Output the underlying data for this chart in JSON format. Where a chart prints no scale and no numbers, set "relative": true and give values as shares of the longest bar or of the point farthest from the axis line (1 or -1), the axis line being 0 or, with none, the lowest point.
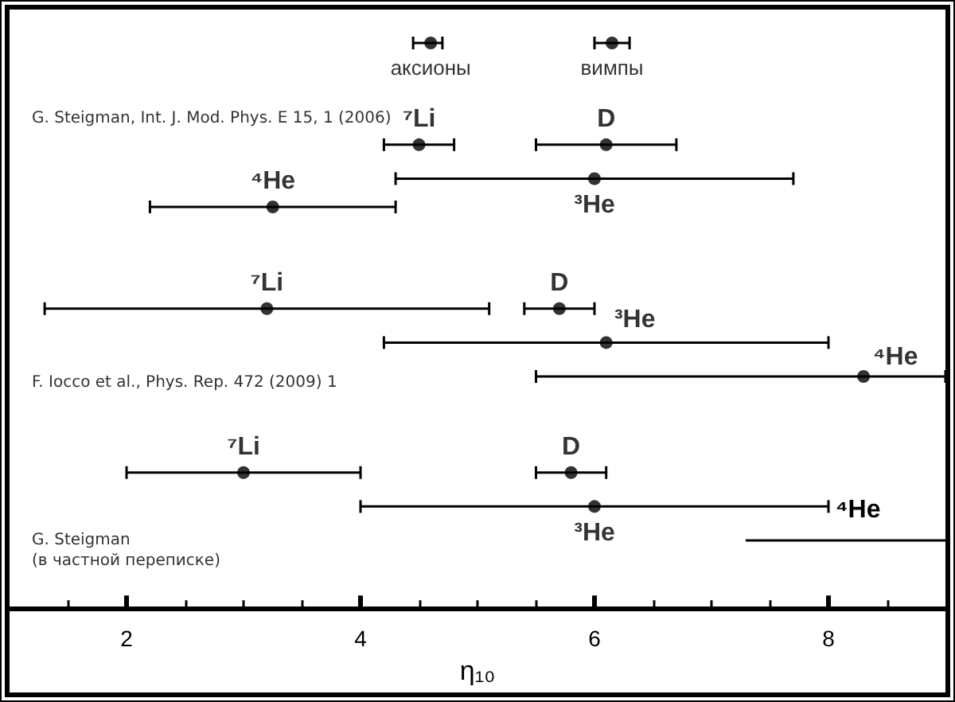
{
  "chart_data": {
    "type": "scatter",
    "relative": true,
    "marker": "circle",
    "xlabel": "η₁₀",
    "xlim": [
      1,
      9
    ],
    "xticks": [
      {
        "value": 1.5,
        "label": null
      },
      2,
      {
        "value": 2.5,
        "label": null
      },
      {
        "value": 3,
        "label": null
      },
      {
        "value": 3.5,
        "label": null
      },
      4,
      {
        "value": 4.5,
        "label": null
      },
      {
        "value": 5,
        "label": null
      },
      {
        "value": 5.5,
        "label": null
      },
      6,
      {
        "value": 6.5,
        "label": null
      },
      {
        "value": 7,
        "label": null
      },
      {
        "value": 7.5,
        "label": null
      },
      8,
      {
        "value": 8.5,
        "label": null
      }
    ],
    "series": [
      {
        "name": "аксионы",
        "color": "#000000",
        "x": [
          4.6
        ],
        "values": [
          1
        ],
        "xerrors": [
          [
            4.45,
            4.7
          ]
        ]
      },
      {
        "name": "вимпы",
        "color": "#000000",
        "x": [
          6.15
        ],
        "values": [
          1
        ],
        "xerrors": [
          [
            6.0,
            6.3
          ]
        ]
      },
      {
        "name": "⁷Li",
        "color": "#000000",
        "x": [
          4.5,
          3.2,
          3.0
        ],
        "values": [
          0.82,
          0.53,
          0.24
        ],
        "xerrors": [
          [
            4.2,
            4.8
          ],
          [
            1.3,
            5.1
          ],
          [
            2.0,
            4.0
          ]
        ]
      },
      {
        "name": "D",
        "color": "#000000",
        "x": [
          6.1,
          5.7,
          5.8
        ],
        "values": [
          0.82,
          0.53,
          0.24
        ],
        "xerrors": [
          [
            5.5,
            6.7
          ],
          [
            5.4,
            6.0
          ],
          [
            5.5,
            6.1
          ]
        ]
      },
      {
        "name": "³He",
        "color": "#000000",
        "x": [
          6.0,
          6.1,
          6.0
        ],
        "values": [
          0.76,
          0.47,
          0.18
        ],
        "xerrors": [
          [
            4.3,
            7.7
          ],
          [
            4.2,
            8.0
          ],
          [
            4.0,
            8.0
          ]
        ]
      },
      {
        "name": "⁴He",
        "color": "#000000",
        "x": [
          3.25,
          8.3
        ],
        "values": [
          0.71,
          0.41
        ],
        "xerrors": [
          [
            2.2,
            4.3
          ],
          [
            5.5,
            9
          ]
        ]
      },
      {
        "name": "⁴He",
        "type": "line",
        "marker": "none",
        "line_style": "solid",
        "color": "#000000",
        "x": [
          7.3,
          9
        ],
        "values": [
          0.12,
          0.12
        ]
      }
    ],
    "annotations": [
      "G. Steigman, Int. J. Mod. Phys. E 15, 1 (2006)",
      "F. Iocco et al., Phys. Rep. 472 (2009) 1",
      "G. Steigman\n(в частной переписке)"
    ]
  }
}
